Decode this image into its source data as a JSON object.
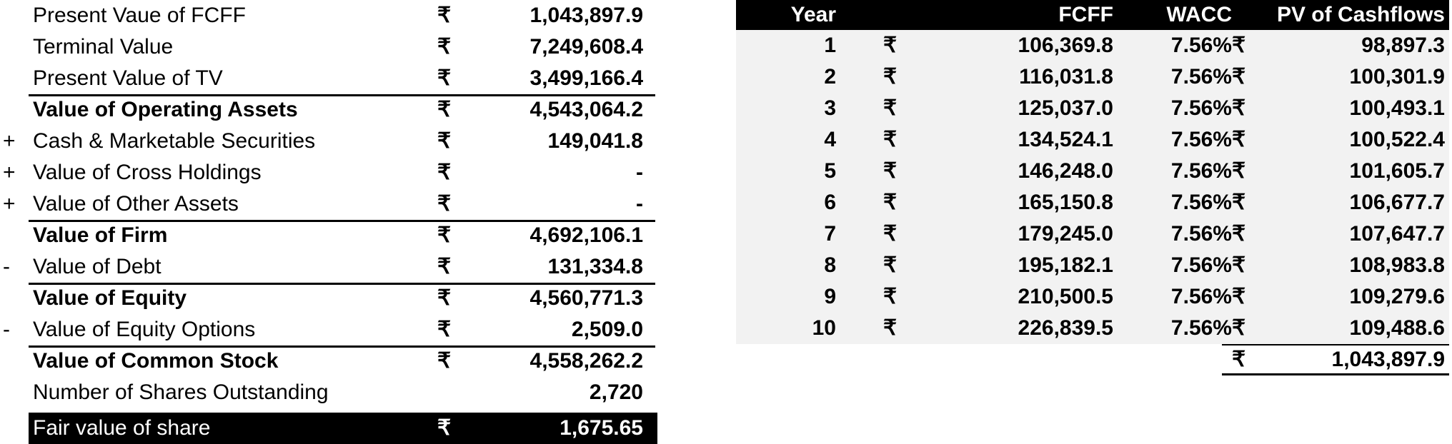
{
  "currency_symbol": "₹",
  "valuation": {
    "rows": [
      {
        "sign": "",
        "label": "Present Vaue of FCFF",
        "currency": "₹",
        "value": "1,043,897.9",
        "bold": false,
        "topline": false
      },
      {
        "sign": "",
        "label": "Terminal Value",
        "currency": "₹",
        "value": "7,249,608.4",
        "bold": false,
        "topline": false
      },
      {
        "sign": "",
        "label": "Present Value of TV",
        "currency": "₹",
        "value": "3,499,166.4",
        "bold": false,
        "topline": false
      },
      {
        "sign": "",
        "label": "Value of Operating Assets",
        "currency": "₹",
        "value": "4,543,064.2",
        "bold": true,
        "topline": true
      },
      {
        "sign": "+",
        "label": "Cash & Marketable Securities",
        "currency": "₹",
        "value": "149,041.8",
        "bold": false,
        "topline": false
      },
      {
        "sign": "+",
        "label": "Value of Cross Holdings",
        "currency": "₹",
        "value": "-",
        "bold": false,
        "topline": false
      },
      {
        "sign": "+",
        "label": "Value of Other Assets",
        "currency": "₹",
        "value": "-",
        "bold": false,
        "topline": false
      },
      {
        "sign": "",
        "label": "Value of Firm",
        "currency": "₹",
        "value": "4,692,106.1",
        "bold": true,
        "topline": true
      },
      {
        "sign": "-",
        "label": "Value of Debt",
        "currency": "₹",
        "value": "131,334.8",
        "bold": false,
        "topline": false
      },
      {
        "sign": "",
        "label": "Value of Equity",
        "currency": "₹",
        "value": "4,560,771.3",
        "bold": true,
        "topline": true
      },
      {
        "sign": "-",
        "label": "Value of Equity Options",
        "currency": "₹",
        "value": "2,509.0",
        "bold": false,
        "topline": false
      },
      {
        "sign": "",
        "label": "Value of Common Stock",
        "currency": "₹",
        "value": "4,558,262.2",
        "bold": true,
        "topline": true
      },
      {
        "sign": "",
        "label": "Number of Shares Outstanding",
        "currency": "",
        "value": "2,720",
        "bold": false,
        "topline": false
      }
    ],
    "fair_value": {
      "label": "Fair value of share",
      "currency": "₹",
      "value": "1,675.65"
    }
  },
  "cashflows": {
    "headers": {
      "year": "Year",
      "fcff": "FCFF",
      "wacc": "WACC",
      "pv": "PV of Cashflows"
    },
    "rows": [
      {
        "year": "1",
        "fcff": "106,369.8",
        "wacc": "7.56%",
        "pv": "98,897.3"
      },
      {
        "year": "2",
        "fcff": "116,031.8",
        "wacc": "7.56%",
        "pv": "100,301.9"
      },
      {
        "year": "3",
        "fcff": "125,037.0",
        "wacc": "7.56%",
        "pv": "100,493.1"
      },
      {
        "year": "4",
        "fcff": "134,524.1",
        "wacc": "7.56%",
        "pv": "100,522.4"
      },
      {
        "year": "5",
        "fcff": "146,248.0",
        "wacc": "7.56%",
        "pv": "101,605.7"
      },
      {
        "year": "6",
        "fcff": "165,150.8",
        "wacc": "7.56%",
        "pv": "106,677.7"
      },
      {
        "year": "7",
        "fcff": "179,245.0",
        "wacc": "7.56%",
        "pv": "107,647.7"
      },
      {
        "year": "8",
        "fcff": "195,182.1",
        "wacc": "7.56%",
        "pv": "108,983.8"
      },
      {
        "year": "9",
        "fcff": "210,500.5",
        "wacc": "7.56%",
        "pv": "109,279.6"
      },
      {
        "year": "10",
        "fcff": "226,839.5",
        "wacc": "7.56%",
        "pv": "109,488.6"
      }
    ],
    "total": {
      "currency": "₹",
      "value": "1,043,897.9"
    }
  }
}
